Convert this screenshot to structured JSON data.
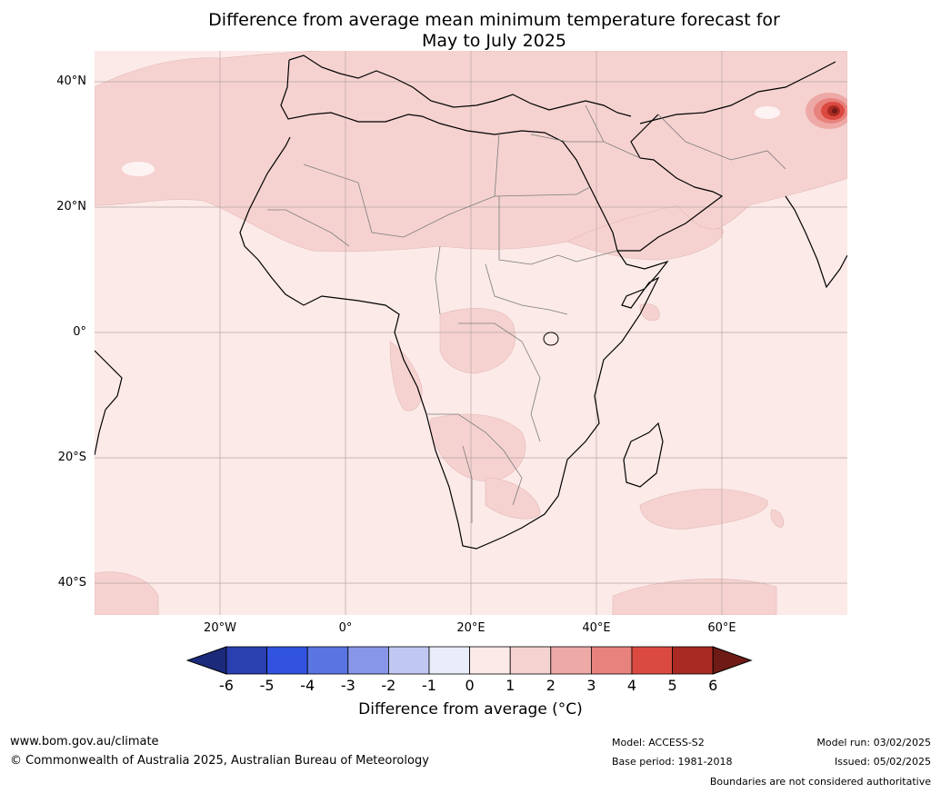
{
  "title_line1": "Difference from average mean minimum temperature forecast for",
  "title_line2": "May to July 2025",
  "lat_labels": [
    "40°N",
    "20°N",
    "0°",
    "20°S",
    "40°S"
  ],
  "lon_labels": [
    "20°W",
    "0°",
    "20°E",
    "40°E",
    "60°E"
  ],
  "colorbar": {
    "ticks": [
      "-6",
      "-5",
      "-4",
      "-3",
      "-2",
      "-1",
      "0",
      "1",
      "2",
      "3",
      "4",
      "5",
      "6"
    ],
    "colors": [
      "#1b2a7a",
      "#2a3fb0",
      "#3153df",
      "#5a74e2",
      "#8796e8",
      "#c0c8f2",
      "#e9ecfb",
      "#fbeae8",
      "#f5d2d0",
      "#eda9a6",
      "#e8827d",
      "#db4a41",
      "#a82a22",
      "#6e1a15"
    ],
    "label": "Difference from average (°C)"
  },
  "footer": {
    "website": "www.bom.gov.au/climate",
    "copyright": "© Commonwealth of Australia 2025, Australian Bureau of Meteorology",
    "model": "Model: ACCESS-S2",
    "base_period": "Base period: 1981-2018",
    "model_run": "Model run: 03/02/2025",
    "issued": "Issued: 05/02/2025",
    "disclaimer": "Boundaries are not considered authoritative"
  }
}
